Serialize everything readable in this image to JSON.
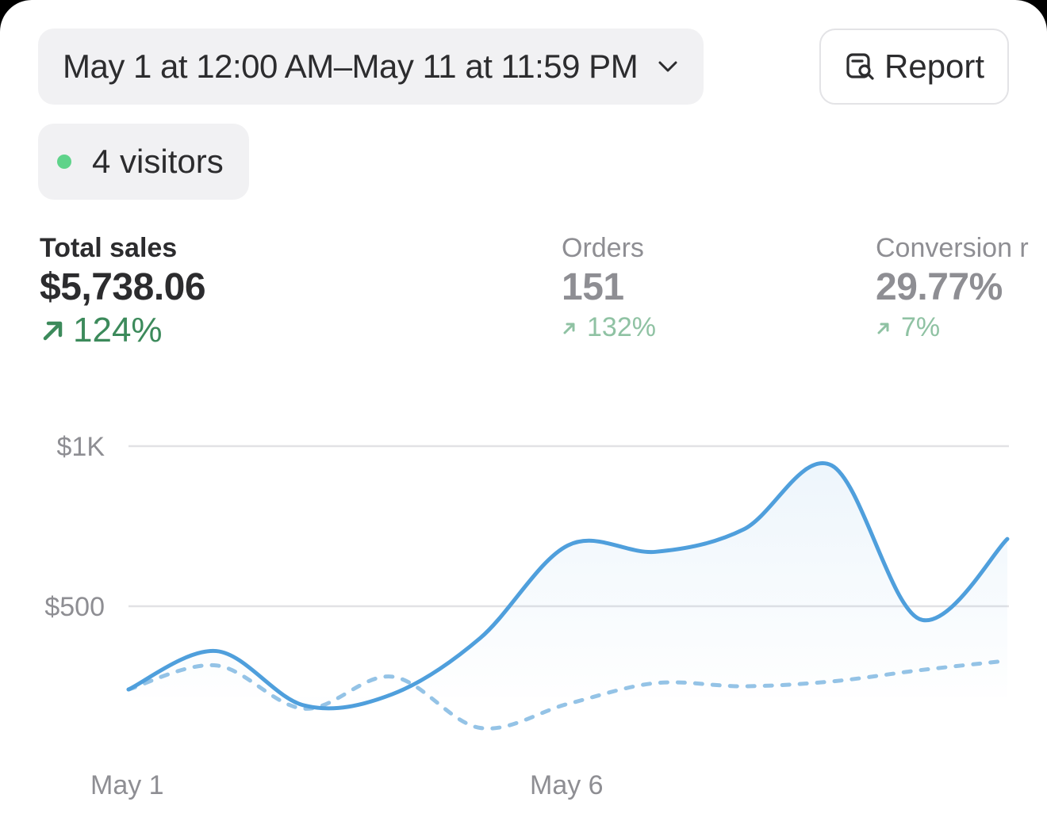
{
  "date_range": {
    "label": "May 1 at 12:00 AM–May 11 at 11:59 PM",
    "chevron_icon": "chevron-down-icon"
  },
  "report_button": {
    "label": "Report",
    "icon": "report-search-icon"
  },
  "live_visitors": {
    "label": "4 visitors",
    "indicator_color": "#5fd38a"
  },
  "metrics": [
    {
      "label": "Total sales",
      "value": "$5,738.06",
      "delta": "124%",
      "direction": "up"
    },
    {
      "label": "Orders",
      "value": "151",
      "delta": "132%",
      "direction": "up"
    },
    {
      "label": "Conversion r",
      "value": "29.77%",
      "delta": "7%",
      "direction": "up"
    }
  ],
  "colors": {
    "current_line": "#4f9fdc",
    "comparison_line": "#94c3e6",
    "positive_delta": "#3c8a5b",
    "positive_delta_muted": "#8fc2a3"
  },
  "chart_data": {
    "type": "line",
    "x": [
      "May 1",
      "May 2",
      "May 3",
      "May 4",
      "May 5",
      "May 6",
      "May 7",
      "May 8",
      "May 9",
      "May 10",
      "May 11"
    ],
    "x_tick_labels": [
      "May 1",
      "May 6"
    ],
    "y_tick_labels": [
      "$1K",
      "$500"
    ],
    "y_ticks": [
      1000,
      500
    ],
    "ylim": [
      0,
      1000
    ],
    "grid": true,
    "series": [
      {
        "style": "solid",
        "values": [
          240,
          360,
          190,
          225,
          400,
          690,
          670,
          740,
          940,
          460,
          710
        ]
      },
      {
        "style": "dashed",
        "values": [
          240,
          315,
          180,
          280,
          120,
          195,
          260,
          250,
          265,
          300,
          330
        ]
      }
    ]
  }
}
